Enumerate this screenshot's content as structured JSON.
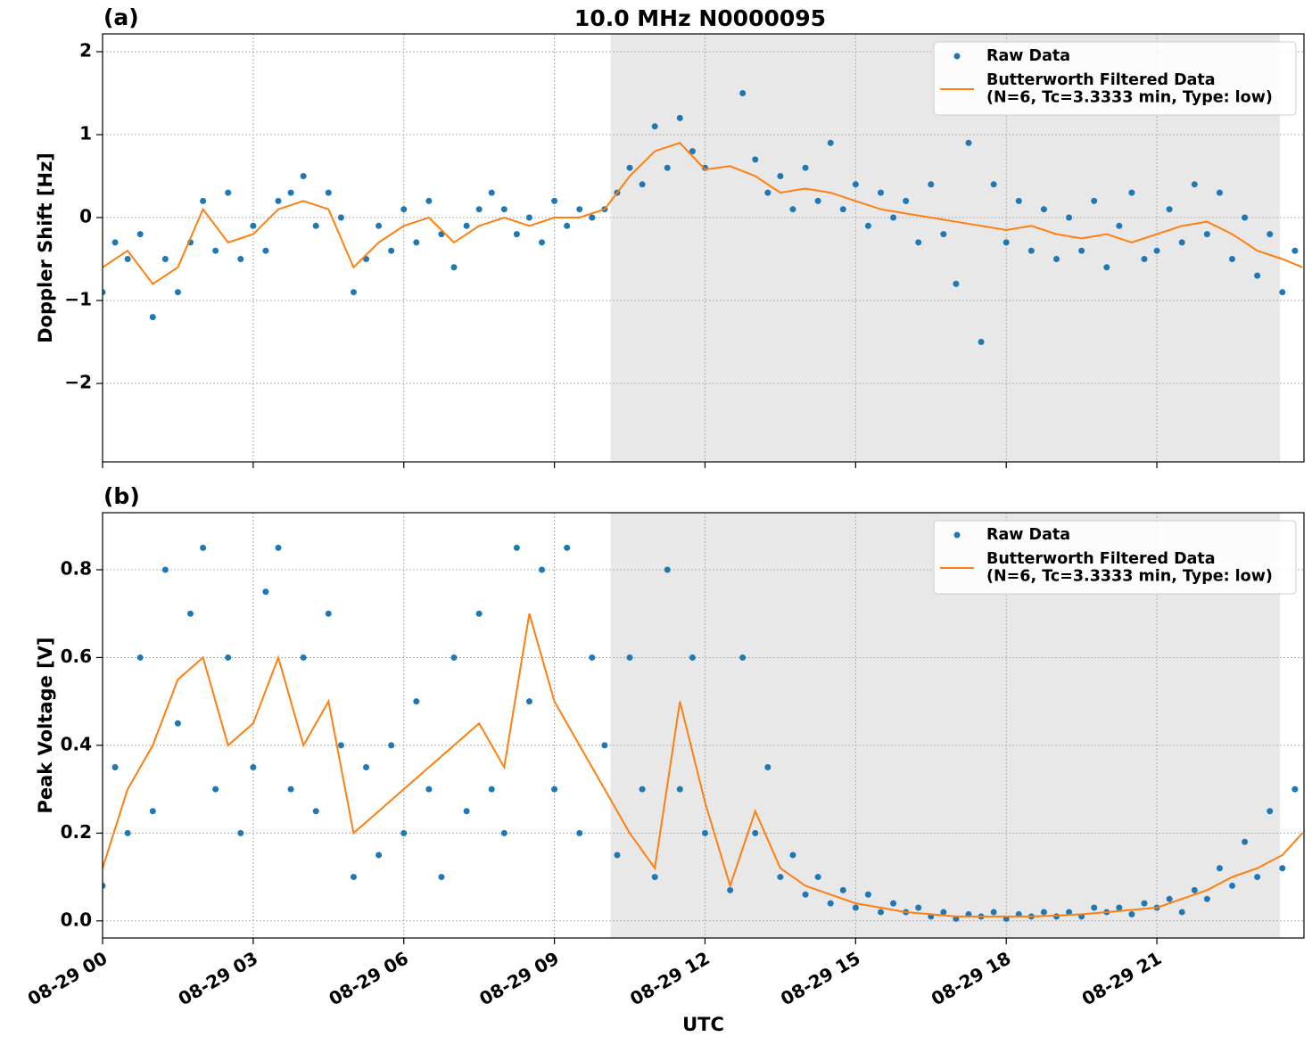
{
  "chart_data": [
    {
      "type": "scatter-line",
      "title": "10.0 MHz N0000095",
      "panel_label": "(a)",
      "y_label": "Doppler Shift [Hz]",
      "xlim": [
        0,
        23.93
      ],
      "xticks": [
        0,
        3,
        6,
        9,
        12,
        15,
        18,
        21
      ],
      "ylim": [
        -2.946,
        2.215
      ],
      "yticks": [
        {
          "value": -2,
          "label": "−2"
        },
        {
          "value": -1,
          "label": "−1"
        },
        0,
        1,
        2
      ],
      "grid": true,
      "legend": "upper right",
      "shaded_span": [
        10.12,
        23.45
      ],
      "shade_color": "#e8e8e8",
      "series": [
        {
          "name": "Raw Data",
          "kind": "scatter",
          "color": "#1f77b4",
          "x": [
            0,
            0.25,
            0.5,
            0.75,
            1,
            1.25,
            1.5,
            1.75,
            2,
            2.25,
            2.5,
            2.75,
            3,
            3.25,
            3.5,
            3.75,
            4,
            4.25,
            4.5,
            4.75,
            5,
            5.25,
            5.5,
            5.75,
            6,
            6.25,
            6.5,
            6.75,
            7,
            7.25,
            7.5,
            7.75,
            8,
            8.25,
            8.5,
            8.75,
            9,
            9.25,
            9.5,
            9.75,
            10,
            10.25,
            10.5,
            10.75,
            11,
            11.25,
            11.5,
            11.75,
            12,
            12.25,
            12.5,
            12.75,
            13,
            13.25,
            13.5,
            13.75,
            14,
            14.25,
            14.5,
            14.75,
            15,
            15.25,
            15.5,
            15.75,
            16,
            16.25,
            16.5,
            16.75,
            17,
            17.25,
            17.5,
            17.75,
            18,
            18.25,
            18.5,
            18.75,
            19,
            19.25,
            19.5,
            19.75,
            20,
            20.25,
            20.5,
            20.75,
            21,
            21.25,
            21.5,
            21.75,
            22,
            22.25,
            22.5,
            22.75,
            23,
            23.25,
            23.5,
            23.75
          ],
          "values": [
            -0.9,
            -0.3,
            -0.5,
            -0.2,
            -1.2,
            -0.5,
            -0.9,
            -0.3,
            0.2,
            -0.4,
            0.3,
            -0.5,
            -0.1,
            -0.4,
            0.2,
            0.3,
            0.5,
            -0.1,
            0.3,
            0.0,
            -0.9,
            -0.5,
            -0.1,
            -0.4,
            0.1,
            -0.3,
            0.2,
            -0.2,
            -0.6,
            -0.1,
            0.1,
            0.3,
            0.1,
            -0.2,
            0.0,
            -0.3,
            0.2,
            -0.1,
            0.1,
            0.0,
            0.1,
            0.3,
            0.6,
            0.4,
            1.1,
            0.6,
            1.2,
            0.8,
            0.6,
            null,
            null,
            1.5,
            0.7,
            0.3,
            0.5,
            0.1,
            0.6,
            0.2,
            0.9,
            0.1,
            0.4,
            -0.1,
            0.3,
            0.0,
            0.2,
            -0.3,
            0.4,
            -0.2,
            -0.8,
            0.9,
            -1.5,
            0.4,
            -0.3,
            0.2,
            -0.4,
            0.1,
            -0.5,
            0.0,
            -0.4,
            0.2,
            -0.6,
            -0.1,
            0.3,
            -0.5,
            -0.4,
            0.1,
            -0.3,
            0.4,
            -0.2,
            0.3,
            -0.5,
            0.0,
            -0.7,
            -0.2,
            -0.9,
            -0.4
          ]
        },
        {
          "name": "Butterworth Filtered Data\n(N=6, Tc=3.3333 min, Type: low)",
          "kind": "line",
          "color": "#ff7f0e",
          "x": [
            0,
            0.5,
            1,
            1.5,
            2,
            2.5,
            3,
            3.5,
            4,
            4.5,
            5,
            5.5,
            6,
            6.5,
            7,
            7.5,
            8,
            8.5,
            9,
            9.5,
            10,
            10.5,
            11,
            11.5,
            12,
            12.5,
            13,
            13.5,
            14,
            14.5,
            15,
            15.5,
            16,
            16.5,
            17,
            17.5,
            18,
            18.5,
            19,
            19.5,
            20,
            20.5,
            21,
            21.5,
            22,
            22.5,
            23,
            23.5,
            23.9
          ],
          "values": [
            -0.6,
            -0.4,
            -0.8,
            -0.6,
            0.1,
            -0.3,
            -0.2,
            0.1,
            0.2,
            0.1,
            -0.6,
            -0.3,
            -0.1,
            0.0,
            -0.3,
            -0.1,
            0.0,
            -0.1,
            0.0,
            0.0,
            0.1,
            0.5,
            0.8,
            0.9,
            0.58,
            0.62,
            0.5,
            0.3,
            0.35,
            0.3,
            0.2,
            0.1,
            0.05,
            0.0,
            -0.05,
            -0.1,
            -0.15,
            -0.1,
            -0.2,
            -0.25,
            -0.2,
            -0.3,
            -0.2,
            -0.1,
            -0.05,
            -0.2,
            -0.4,
            -0.5,
            -0.6
          ]
        }
      ]
    },
    {
      "type": "scatter-line",
      "panel_label": "(b)",
      "y_label": "Peak Voltage [V]",
      "x_label": "UTC",
      "xlim": [
        0,
        23.93
      ],
      "xticks": [
        {
          "value": 0,
          "label": "08-29 00"
        },
        {
          "value": 3,
          "label": "08-29 03"
        },
        {
          "value": 6,
          "label": "08-29 06"
        },
        {
          "value": 9,
          "label": "08-29 09"
        },
        {
          "value": 12,
          "label": "08-29 12"
        },
        {
          "value": 15,
          "label": "08-29 15"
        },
        {
          "value": 18,
          "label": "08-29 18"
        },
        {
          "value": 21,
          "label": "08-29 21"
        }
      ],
      "ylim": [
        -0.039,
        0.93
      ],
      "yticks": [
        {
          "value": 0,
          "label": "0.0"
        },
        0.2,
        0.4,
        0.6,
        0.8
      ],
      "grid": true,
      "legend": "upper right",
      "shaded_span": [
        10.12,
        23.45
      ],
      "shade_color": "#e8e8e8",
      "series": [
        {
          "name": "Raw Data",
          "kind": "scatter",
          "color": "#1f77b4",
          "x": [
            0,
            0.25,
            0.5,
            0.75,
            1,
            1.25,
            1.5,
            1.75,
            2,
            2.25,
            2.5,
            2.75,
            3,
            3.25,
            3.5,
            3.75,
            4,
            4.25,
            4.5,
            4.75,
            5,
            5.25,
            5.5,
            5.75,
            6,
            6.25,
            6.5,
            6.75,
            7,
            7.25,
            7.5,
            7.75,
            8,
            8.25,
            8.5,
            8.75,
            9,
            9.25,
            9.5,
            9.75,
            10,
            10.25,
            10.5,
            10.75,
            11,
            11.25,
            11.5,
            11.75,
            12,
            12.25,
            12.5,
            12.75,
            13,
            13.25,
            13.5,
            13.75,
            14,
            14.25,
            14.5,
            14.75,
            15,
            15.25,
            15.5,
            15.75,
            16,
            16.25,
            16.5,
            16.75,
            17,
            17.25,
            17.5,
            17.75,
            18,
            18.25,
            18.5,
            18.75,
            19,
            19.25,
            19.5,
            19.75,
            20,
            20.25,
            20.5,
            20.75,
            21,
            21.25,
            21.5,
            21.75,
            22,
            22.25,
            22.5,
            22.75,
            23,
            23.25,
            23.5,
            23.75
          ],
          "values": [
            0.08,
            0.35,
            0.2,
            0.6,
            0.25,
            0.8,
            0.45,
            0.7,
            0.85,
            0.3,
            0.6,
            0.2,
            0.35,
            0.75,
            0.85,
            0.3,
            0.6,
            0.25,
            0.7,
            0.4,
            0.1,
            0.35,
            0.15,
            0.4,
            0.2,
            0.5,
            0.3,
            0.1,
            0.6,
            0.25,
            0.7,
            0.3,
            0.2,
            0.85,
            0.5,
            0.8,
            0.3,
            0.85,
            0.2,
            0.6,
            0.4,
            0.15,
            0.6,
            0.3,
            0.1,
            0.8,
            0.3,
            0.6,
            0.2,
            null,
            0.07,
            0.6,
            0.2,
            0.35,
            0.1,
            0.15,
            0.06,
            0.1,
            0.04,
            0.07,
            0.03,
            0.06,
            0.02,
            0.04,
            0.02,
            0.03,
            0.01,
            0.02,
            0.005,
            0.015,
            0.01,
            0.02,
            0.005,
            0.015,
            0.01,
            0.02,
            0.01,
            0.02,
            0.01,
            0.03,
            0.02,
            0.03,
            0.015,
            0.04,
            0.03,
            0.05,
            0.02,
            0.07,
            0.05,
            0.12,
            0.08,
            0.18,
            0.1,
            0.25,
            0.12,
            0.3
          ]
        },
        {
          "name": "Butterworth Filtered Data\n(N=6, Tc=3.3333 min, Type: low)",
          "kind": "line",
          "color": "#ff7f0e",
          "x": [
            0,
            0.5,
            1,
            1.5,
            2,
            2.5,
            3,
            3.5,
            4,
            4.5,
            5,
            5.5,
            6,
            6.5,
            7,
            7.5,
            8,
            8.5,
            9,
            9.5,
            10,
            10.5,
            11,
            11.5,
            12,
            12.5,
            13,
            13.5,
            14,
            14.5,
            15,
            15.5,
            16,
            16.5,
            17,
            17.5,
            18,
            18.5,
            19,
            19.5,
            20,
            20.5,
            21,
            21.5,
            22,
            22.5,
            23,
            23.5,
            23.9
          ],
          "values": [
            0.12,
            0.3,
            0.4,
            0.55,
            0.6,
            0.4,
            0.45,
            0.6,
            0.4,
            0.5,
            0.2,
            0.25,
            0.3,
            0.35,
            0.4,
            0.45,
            0.35,
            0.7,
            0.5,
            0.4,
            0.3,
            0.2,
            0.12,
            0.5,
            0.27,
            0.08,
            0.25,
            0.12,
            0.08,
            0.06,
            0.04,
            0.03,
            0.02,
            0.015,
            0.01,
            0.01,
            0.01,
            0.01,
            0.012,
            0.015,
            0.02,
            0.025,
            0.03,
            0.05,
            0.07,
            0.1,
            0.12,
            0.15,
            0.2
          ]
        }
      ]
    }
  ]
}
